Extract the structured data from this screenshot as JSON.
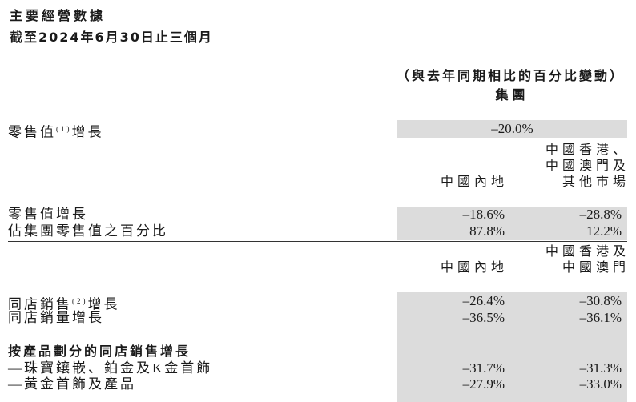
{
  "title": "主要經營數據",
  "subtitle": "截至2024年6月30日止三個月",
  "comparison_note": "（與去年同期相比的百分比變動）",
  "group_header": "集團",
  "section1": {
    "label": "零售值",
    "note": "(1)",
    "label_suffix": "增長",
    "value": "–20.0%"
  },
  "section2": {
    "col1": "中國內地",
    "col2_lines": [
      "中國香港、",
      "中國澳門及",
      "其他市場"
    ],
    "rows": [
      {
        "label": "零售值增長",
        "v1": "–18.6%",
        "v2": "–28.8%"
      },
      {
        "label": "佔集團零售值之百分比",
        "v1": "87.8%",
        "v2": "12.2%"
      }
    ]
  },
  "section3": {
    "col1": "中國內地",
    "col2_lines": [
      "中國香港及",
      "中國澳門"
    ],
    "rows": [
      {
        "label": "同店銷售",
        "note": "(2)",
        "label_suffix": "增長",
        "v1": "–26.4%",
        "v2": "–30.8%"
      },
      {
        "label": "同店銷量增長",
        "v1": "–36.5%",
        "v2": "–36.1%"
      }
    ],
    "subheading": "按產品劃分的同店銷售增長",
    "product_rows": [
      {
        "label": "—珠寶鑲嵌、鉑金及K金首飾",
        "v1": "–31.7%",
        "v2": "–31.3%"
      },
      {
        "label": "—黃金首飾及產品",
        "v1": "–27.9%",
        "v2": "–33.0%"
      }
    ]
  },
  "colors": {
    "shade": "#dcdcdc"
  }
}
